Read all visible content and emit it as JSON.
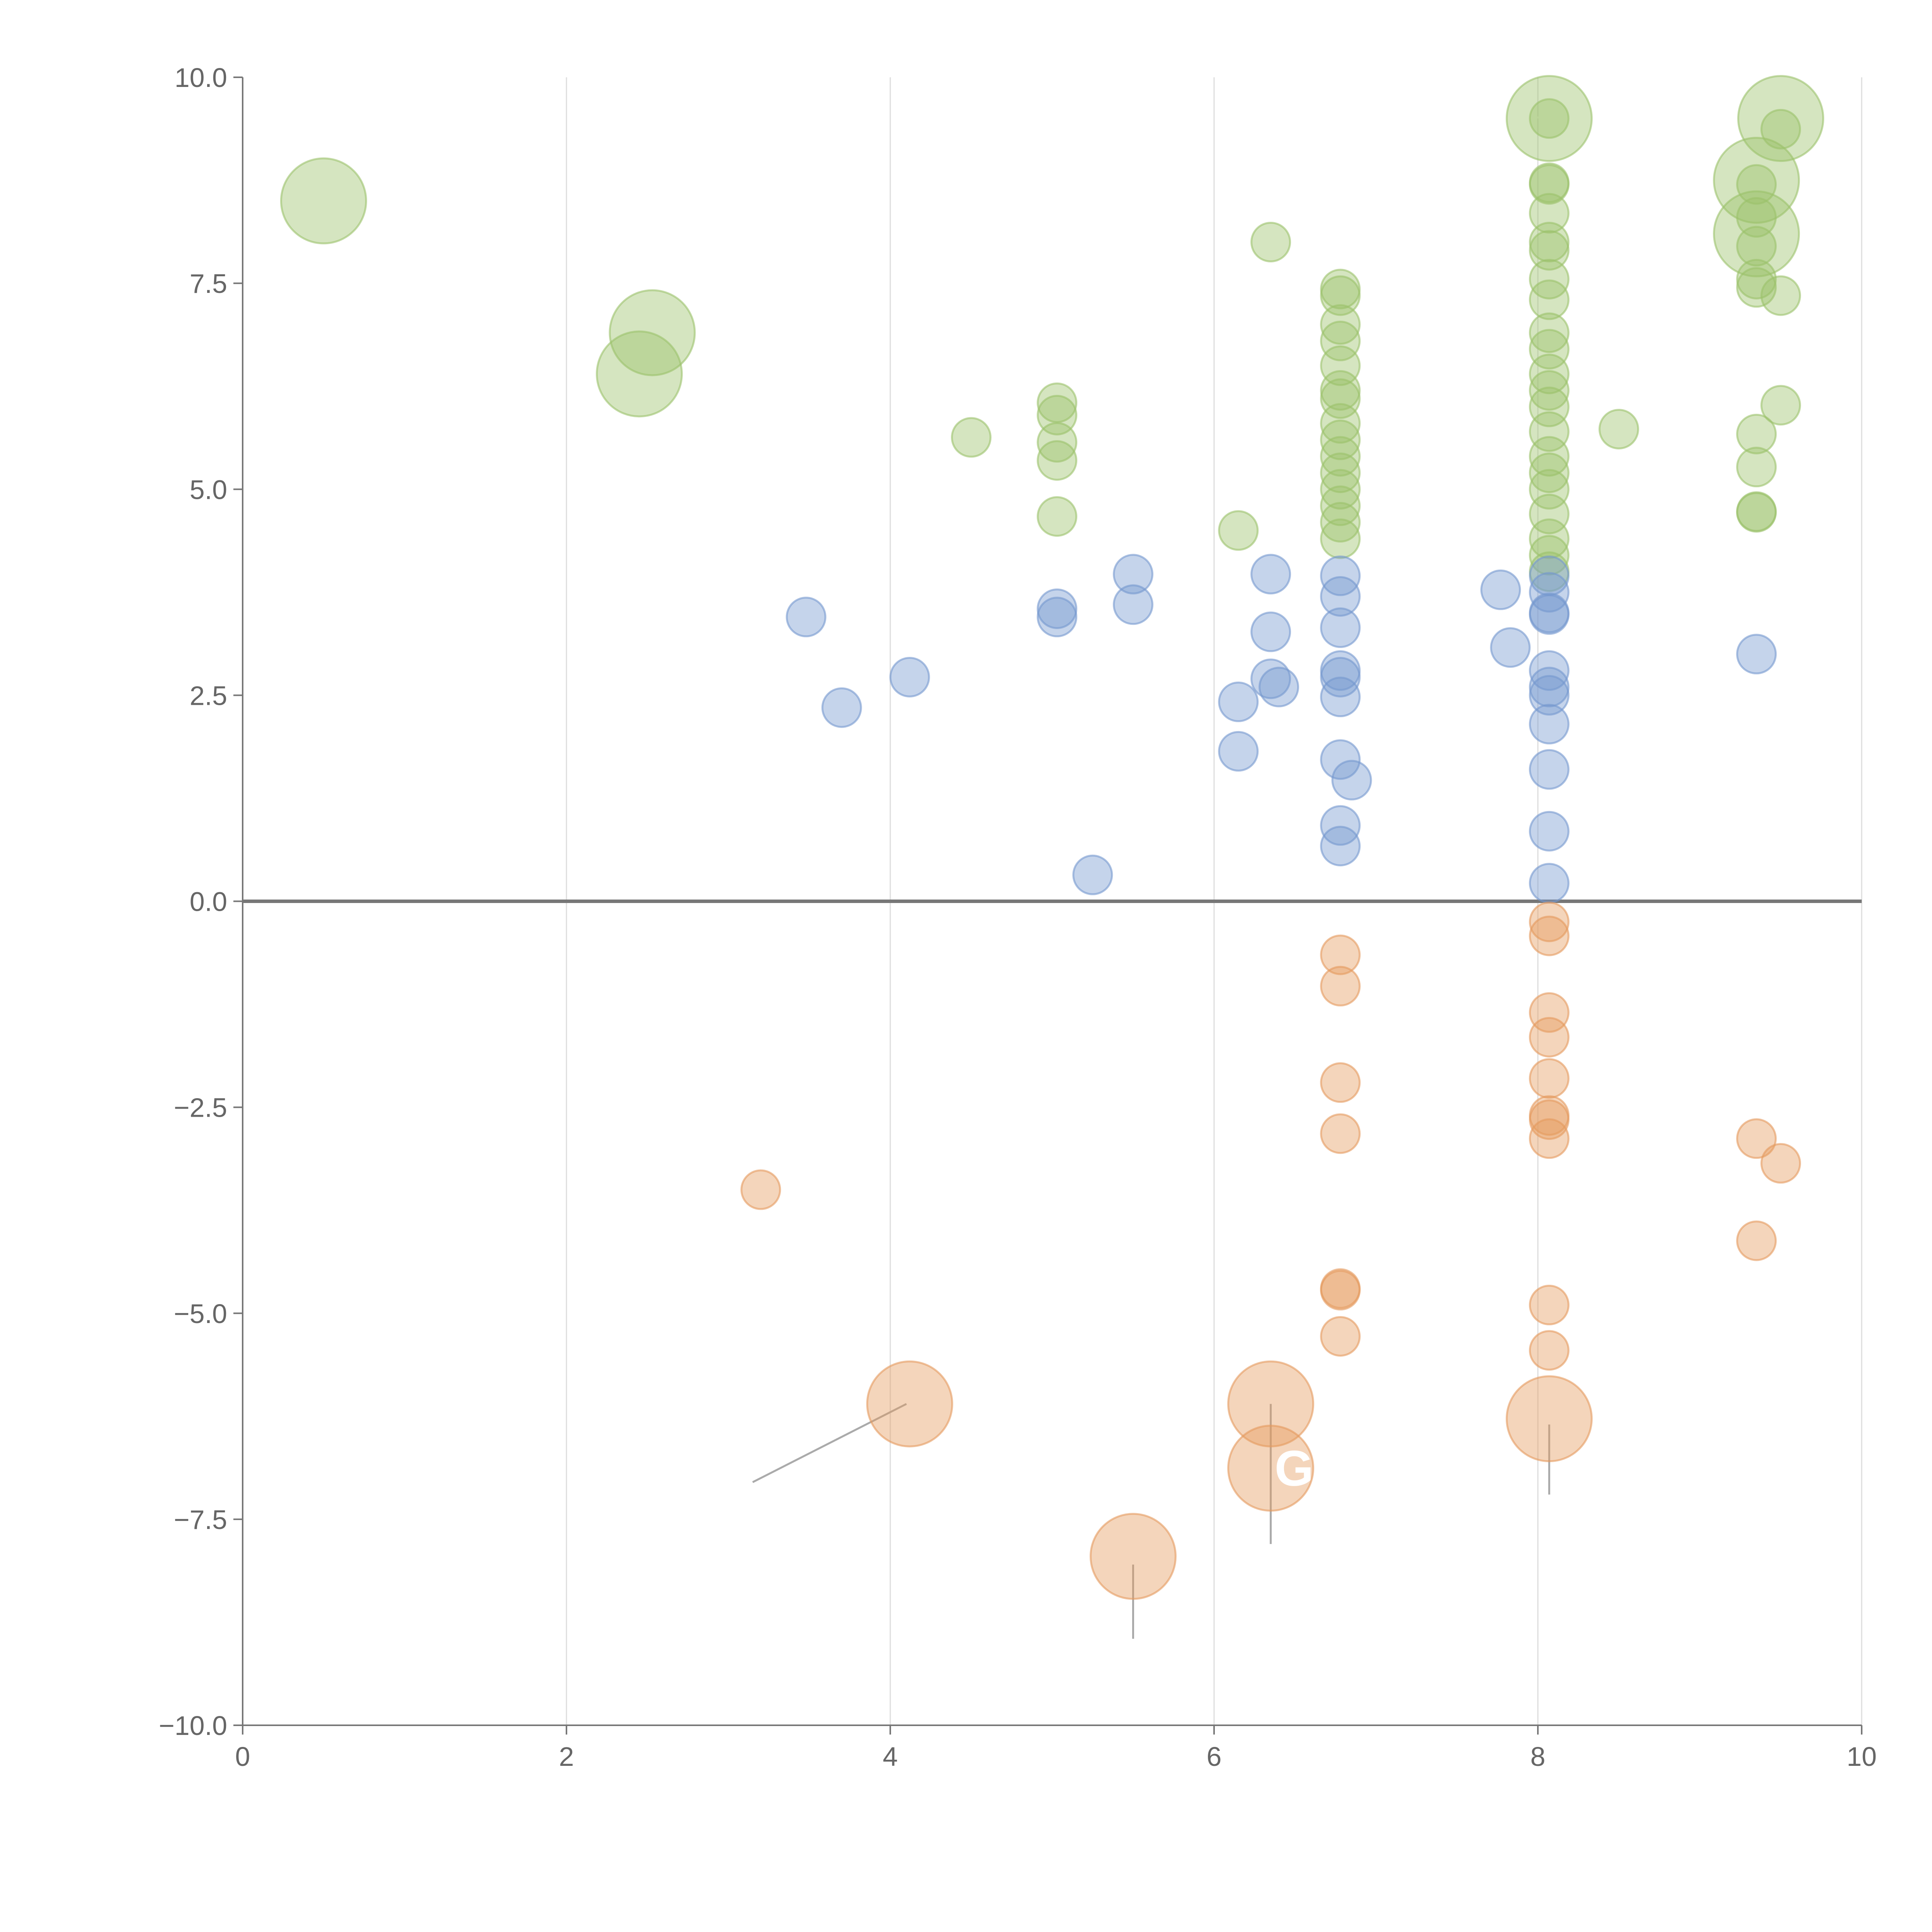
{
  "chart_data": {
    "type": "scatter",
    "title": "",
    "xlabel": "",
    "ylabel": "",
    "xlim": [
      0,
      10
    ],
    "ylim": [
      -10,
      10
    ],
    "xticks": [
      0,
      2,
      4,
      6,
      8,
      10
    ],
    "yticks": [
      -10,
      -7.5,
      -5,
      -2.5,
      0,
      2.5,
      5,
      7.5,
      10
    ],
    "xtick_labels": [
      "0",
      "2",
      "4",
      "6",
      "8",
      "10"
    ],
    "ytick_labels": [
      "−10.0",
      "−7.5",
      "−5.0",
      "−2.5",
      "0.0",
      "2.5",
      "5.0",
      "7.5",
      "10.0"
    ],
    "grid": "vertical",
    "colors": {
      "green": "#9bc16a",
      "blue": "#7598cf",
      "orange": "#e59a5e"
    },
    "size_scale": {
      "small": 1,
      "large": 2.2
    },
    "series": [
      {
        "name": "green",
        "color": "#9bc16a",
        "points": [
          {
            "x": 0.5,
            "y": 8.5,
            "s": 2.2
          },
          {
            "x": 2.53,
            "y": 6.9,
            "s": 2.2
          },
          {
            "x": 2.45,
            "y": 6.4,
            "s": 2.2
          },
          {
            "x": 6.35,
            "y": 8.0,
            "s": 1
          },
          {
            "x": 4.5,
            "y": 5.63,
            "s": 1
          },
          {
            "x": 5.03,
            "y": 6.05,
            "s": 1
          },
          {
            "x": 5.03,
            "y": 5.9,
            "s": 1
          },
          {
            "x": 5.03,
            "y": 5.57,
            "s": 1
          },
          {
            "x": 5.03,
            "y": 5.35,
            "s": 1
          },
          {
            "x": 5.03,
            "y": 4.67,
            "s": 1
          },
          {
            "x": 6.15,
            "y": 4.5,
            "s": 1
          },
          {
            "x": 6.78,
            "y": 7.43,
            "s": 1
          },
          {
            "x": 6.78,
            "y": 7.35,
            "s": 1
          },
          {
            "x": 6.78,
            "y": 7.0,
            "s": 1
          },
          {
            "x": 6.78,
            "y": 6.8,
            "s": 1
          },
          {
            "x": 6.78,
            "y": 6.5,
            "s": 1
          },
          {
            "x": 6.78,
            "y": 6.2,
            "s": 1
          },
          {
            "x": 6.78,
            "y": 6.1,
            "s": 1
          },
          {
            "x": 6.78,
            "y": 5.8,
            "s": 1
          },
          {
            "x": 6.78,
            "y": 5.6,
            "s": 1
          },
          {
            "x": 6.78,
            "y": 5.4,
            "s": 1
          },
          {
            "x": 6.78,
            "y": 5.2,
            "s": 1
          },
          {
            "x": 6.78,
            "y": 5.0,
            "s": 1
          },
          {
            "x": 6.78,
            "y": 4.8,
            "s": 1
          },
          {
            "x": 6.78,
            "y": 4.6,
            "s": 1
          },
          {
            "x": 6.78,
            "y": 4.4,
            "s": 1
          },
          {
            "x": 8.07,
            "y": 9.5,
            "s": 2.2
          },
          {
            "x": 8.07,
            "y": 9.5,
            "s": 1
          },
          {
            "x": 8.07,
            "y": 8.72,
            "s": 1
          },
          {
            "x": 8.07,
            "y": 8.7,
            "s": 1
          },
          {
            "x": 8.07,
            "y": 8.35,
            "s": 1
          },
          {
            "x": 8.07,
            "y": 8.0,
            "s": 1
          },
          {
            "x": 8.07,
            "y": 7.9,
            "s": 1
          },
          {
            "x": 8.07,
            "y": 7.55,
            "s": 1
          },
          {
            "x": 8.07,
            "y": 7.3,
            "s": 1
          },
          {
            "x": 8.07,
            "y": 6.9,
            "s": 1
          },
          {
            "x": 8.07,
            "y": 6.7,
            "s": 1
          },
          {
            "x": 8.07,
            "y": 6.4,
            "s": 1
          },
          {
            "x": 8.07,
            "y": 6.2,
            "s": 1
          },
          {
            "x": 8.07,
            "y": 6.0,
            "s": 1
          },
          {
            "x": 8.07,
            "y": 5.7,
            "s": 1
          },
          {
            "x": 8.07,
            "y": 5.4,
            "s": 1
          },
          {
            "x": 8.07,
            "y": 5.2,
            "s": 1
          },
          {
            "x": 8.07,
            "y": 5.0,
            "s": 1
          },
          {
            "x": 8.07,
            "y": 4.7,
            "s": 1
          },
          {
            "x": 8.07,
            "y": 4.4,
            "s": 1
          },
          {
            "x": 8.07,
            "y": 4.2,
            "s": 1
          },
          {
            "x": 8.07,
            "y": 4.0,
            "s": 1
          },
          {
            "x": 8.5,
            "y": 5.73,
            "s": 1
          },
          {
            "x": 9.35,
            "y": 8.75,
            "s": 2.2
          },
          {
            "x": 9.35,
            "y": 8.1,
            "s": 2.2
          },
          {
            "x": 9.35,
            "y": 8.7,
            "s": 1
          },
          {
            "x": 9.35,
            "y": 8.3,
            "s": 1
          },
          {
            "x": 9.35,
            "y": 7.95,
            "s": 1
          },
          {
            "x": 9.35,
            "y": 7.55,
            "s": 1
          },
          {
            "x": 9.35,
            "y": 7.45,
            "s": 1
          },
          {
            "x": 9.35,
            "y": 5.67,
            "s": 1
          },
          {
            "x": 9.35,
            "y": 5.27,
            "s": 1
          },
          {
            "x": 9.35,
            "y": 4.73,
            "s": 1
          },
          {
            "x": 9.35,
            "y": 4.72,
            "s": 1
          },
          {
            "x": 9.5,
            "y": 9.5,
            "s": 2.2
          },
          {
            "x": 9.5,
            "y": 9.37,
            "s": 1
          },
          {
            "x": 9.5,
            "y": 7.35,
            "s": 1
          },
          {
            "x": 9.5,
            "y": 6.02,
            "s": 1
          }
        ]
      },
      {
        "name": "blue",
        "color": "#7598cf",
        "points": [
          {
            "x": 3.48,
            "y": 3.45,
            "s": 1
          },
          {
            "x": 3.7,
            "y": 2.35,
            "s": 1
          },
          {
            "x": 4.12,
            "y": 2.72,
            "s": 1
          },
          {
            "x": 5.03,
            "y": 3.55,
            "s": 1
          },
          {
            "x": 5.03,
            "y": 3.45,
            "s": 1
          },
          {
            "x": 5.25,
            "y": 0.32,
            "s": 1
          },
          {
            "x": 5.5,
            "y": 3.97,
            "s": 1
          },
          {
            "x": 5.5,
            "y": 3.6,
            "s": 1
          },
          {
            "x": 6.15,
            "y": 2.42,
            "s": 1
          },
          {
            "x": 6.15,
            "y": 1.82,
            "s": 1
          },
          {
            "x": 6.35,
            "y": 3.97,
            "s": 1
          },
          {
            "x": 6.35,
            "y": 3.27,
            "s": 1
          },
          {
            "x": 6.35,
            "y": 2.7,
            "s": 1
          },
          {
            "x": 6.4,
            "y": 2.6,
            "s": 1
          },
          {
            "x": 6.78,
            "y": 3.95,
            "s": 1
          },
          {
            "x": 6.78,
            "y": 3.7,
            "s": 1
          },
          {
            "x": 6.78,
            "y": 3.32,
            "s": 1
          },
          {
            "x": 6.78,
            "y": 2.8,
            "s": 1
          },
          {
            "x": 6.78,
            "y": 2.72,
            "s": 1
          },
          {
            "x": 6.78,
            "y": 2.48,
            "s": 1
          },
          {
            "x": 6.78,
            "y": 1.72,
            "s": 1
          },
          {
            "x": 6.85,
            "y": 1.47,
            "s": 1
          },
          {
            "x": 6.78,
            "y": 0.92,
            "s": 1
          },
          {
            "x": 6.78,
            "y": 0.67,
            "s": 1
          },
          {
            "x": 7.77,
            "y": 3.78,
            "s": 1
          },
          {
            "x": 7.83,
            "y": 3.08,
            "s": 1
          },
          {
            "x": 8.07,
            "y": 3.95,
            "s": 1
          },
          {
            "x": 8.07,
            "y": 3.75,
            "s": 1
          },
          {
            "x": 8.07,
            "y": 3.5,
            "s": 1
          },
          {
            "x": 8.07,
            "y": 3.48,
            "s": 1
          },
          {
            "x": 8.07,
            "y": 2.8,
            "s": 1
          },
          {
            "x": 8.07,
            "y": 2.6,
            "s": 1
          },
          {
            "x": 8.07,
            "y": 2.5,
            "s": 1
          },
          {
            "x": 8.07,
            "y": 2.15,
            "s": 1
          },
          {
            "x": 8.07,
            "y": 1.6,
            "s": 1
          },
          {
            "x": 8.07,
            "y": 0.85,
            "s": 1
          },
          {
            "x": 8.07,
            "y": 0.22,
            "s": 1
          },
          {
            "x": 9.35,
            "y": 3.0,
            "s": 1
          }
        ]
      },
      {
        "name": "orange",
        "color": "#e59a5e",
        "points": [
          {
            "x": 3.2,
            "y": -3.5,
            "s": 1
          },
          {
            "x": 4.12,
            "y": -6.1,
            "s": 2.2
          },
          {
            "x": 5.5,
            "y": -7.95,
            "s": 2.2
          },
          {
            "x": 6.35,
            "y": -6.1,
            "s": 2.2
          },
          {
            "x": 6.35,
            "y": -6.88,
            "s": 2.2,
            "label": "G"
          },
          {
            "x": 6.78,
            "y": -0.65,
            "s": 1
          },
          {
            "x": 6.78,
            "y": -1.03,
            "s": 1
          },
          {
            "x": 6.78,
            "y": -2.2,
            "s": 1
          },
          {
            "x": 6.78,
            "y": -2.82,
            "s": 1
          },
          {
            "x": 6.78,
            "y": -4.7,
            "s": 1
          },
          {
            "x": 6.78,
            "y": -4.72,
            "s": 1
          },
          {
            "x": 6.78,
            "y": -5.28,
            "s": 1
          },
          {
            "x": 8.07,
            "y": -0.25,
            "s": 1
          },
          {
            "x": 8.07,
            "y": -0.42,
            "s": 1
          },
          {
            "x": 8.07,
            "y": -1.35,
            "s": 1
          },
          {
            "x": 8.07,
            "y": -1.65,
            "s": 1
          },
          {
            "x": 8.07,
            "y": -2.15,
            "s": 1
          },
          {
            "x": 8.07,
            "y": -2.6,
            "s": 1
          },
          {
            "x": 8.07,
            "y": -2.65,
            "s": 1
          },
          {
            "x": 8.07,
            "y": -2.88,
            "s": 1
          },
          {
            "x": 8.07,
            "y": -4.9,
            "s": 1
          },
          {
            "x": 8.07,
            "y": -5.45,
            "s": 1
          },
          {
            "x": 8.07,
            "y": -6.28,
            "s": 2.2
          },
          {
            "x": 9.35,
            "y": -2.88,
            "s": 1
          },
          {
            "x": 9.5,
            "y": -3.18,
            "s": 1
          },
          {
            "x": 9.35,
            "y": -4.12,
            "s": 1
          }
        ]
      }
    ],
    "connectors": [
      {
        "from": [
          4.1,
          -6.1
        ],
        "to": [
          3.15,
          -7.05
        ],
        "style": "gray"
      },
      {
        "from": [
          5.5,
          -8.05
        ],
        "to": [
          5.5,
          -8.95
        ],
        "style": "gray"
      },
      {
        "from": [
          6.35,
          -6.1
        ],
        "to": [
          6.35,
          -7.8
        ],
        "style": "gray"
      },
      {
        "from": [
          8.07,
          -6.35
        ],
        "to": [
          8.07,
          -7.2
        ],
        "style": "gray"
      },
      {
        "from": [
          2.57,
          6.95
        ],
        "to": [
          2.75,
          7.1
        ],
        "style": "light"
      },
      {
        "from": [
          2.47,
          6.4
        ],
        "to": [
          2.65,
          6.35
        ],
        "style": "light"
      },
      {
        "from": [
          8.05,
          9.5
        ],
        "to": [
          7.85,
          9.55
        ],
        "style": "light"
      },
      {
        "from": [
          9.35,
          9.5
        ],
        "to": [
          9.5,
          9.45
        ],
        "style": "light"
      },
      {
        "from": [
          9.35,
          8.75
        ],
        "to": [
          9.25,
          8.95
        ],
        "style": "light"
      }
    ]
  }
}
